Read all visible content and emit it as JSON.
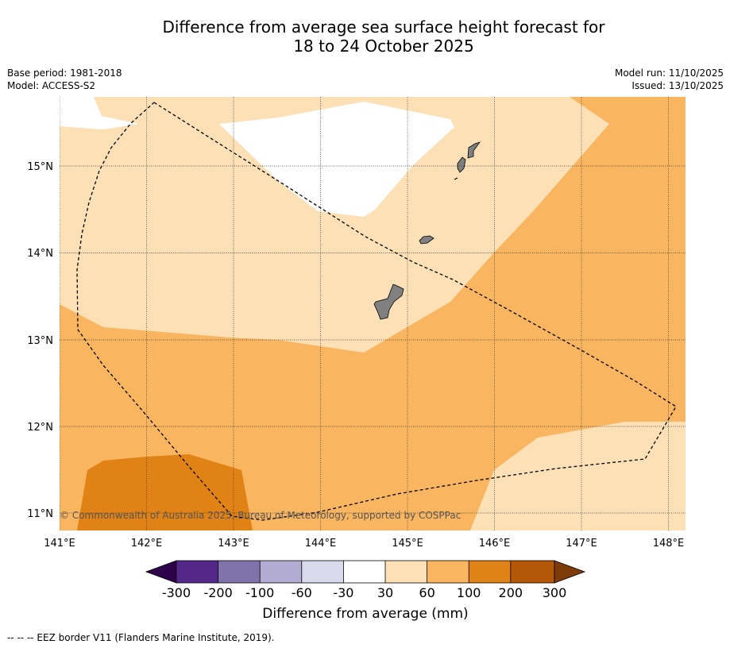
{
  "title": {
    "line1": "Difference from average sea surface height forecast for",
    "line2": "18 to 24 October 2025"
  },
  "meta": {
    "base_period": "Base period: 1981-2018",
    "model": "Model: ACCESS-S2",
    "model_run": "Model run: 11/10/2025",
    "issued": "Issued: 13/10/2025"
  },
  "map": {
    "lat_labels": [
      "15°N",
      "14°N",
      "13°N",
      "12°N",
      "11°N"
    ],
    "lon_labels": [
      "141°E",
      "142°E",
      "143°E",
      "144°E",
      "145°E",
      "146°E",
      "147°E",
      "148°E"
    ],
    "copyright": "© Commonwealth of Australia 2025, Bureau of Meteorology, supported by COSPPac",
    "colors": {
      "band_30_60": "#fde0b6",
      "band_60_100": "#f9b560",
      "band_100_200": "#e08216",
      "band_neutral": "#ffffff",
      "land": "#808080"
    }
  },
  "colorbar": {
    "tick_labels": [
      "-300",
      "-200",
      "-100",
      "-60",
      "-30",
      "30",
      "60",
      "100",
      "200",
      "300"
    ],
    "colors": [
      "#2d004b",
      "#542788",
      "#8073ac",
      "#b2abd2",
      "#d8daeb",
      "#ffffff",
      "#fde0b6",
      "#f9b560",
      "#e08216",
      "#b35806",
      "#7f3b08"
    ],
    "label": "Difference from average (mm)"
  },
  "footnote": "--  --  -- EEZ border V11 (Flanders Marine Institute, 2019)."
}
